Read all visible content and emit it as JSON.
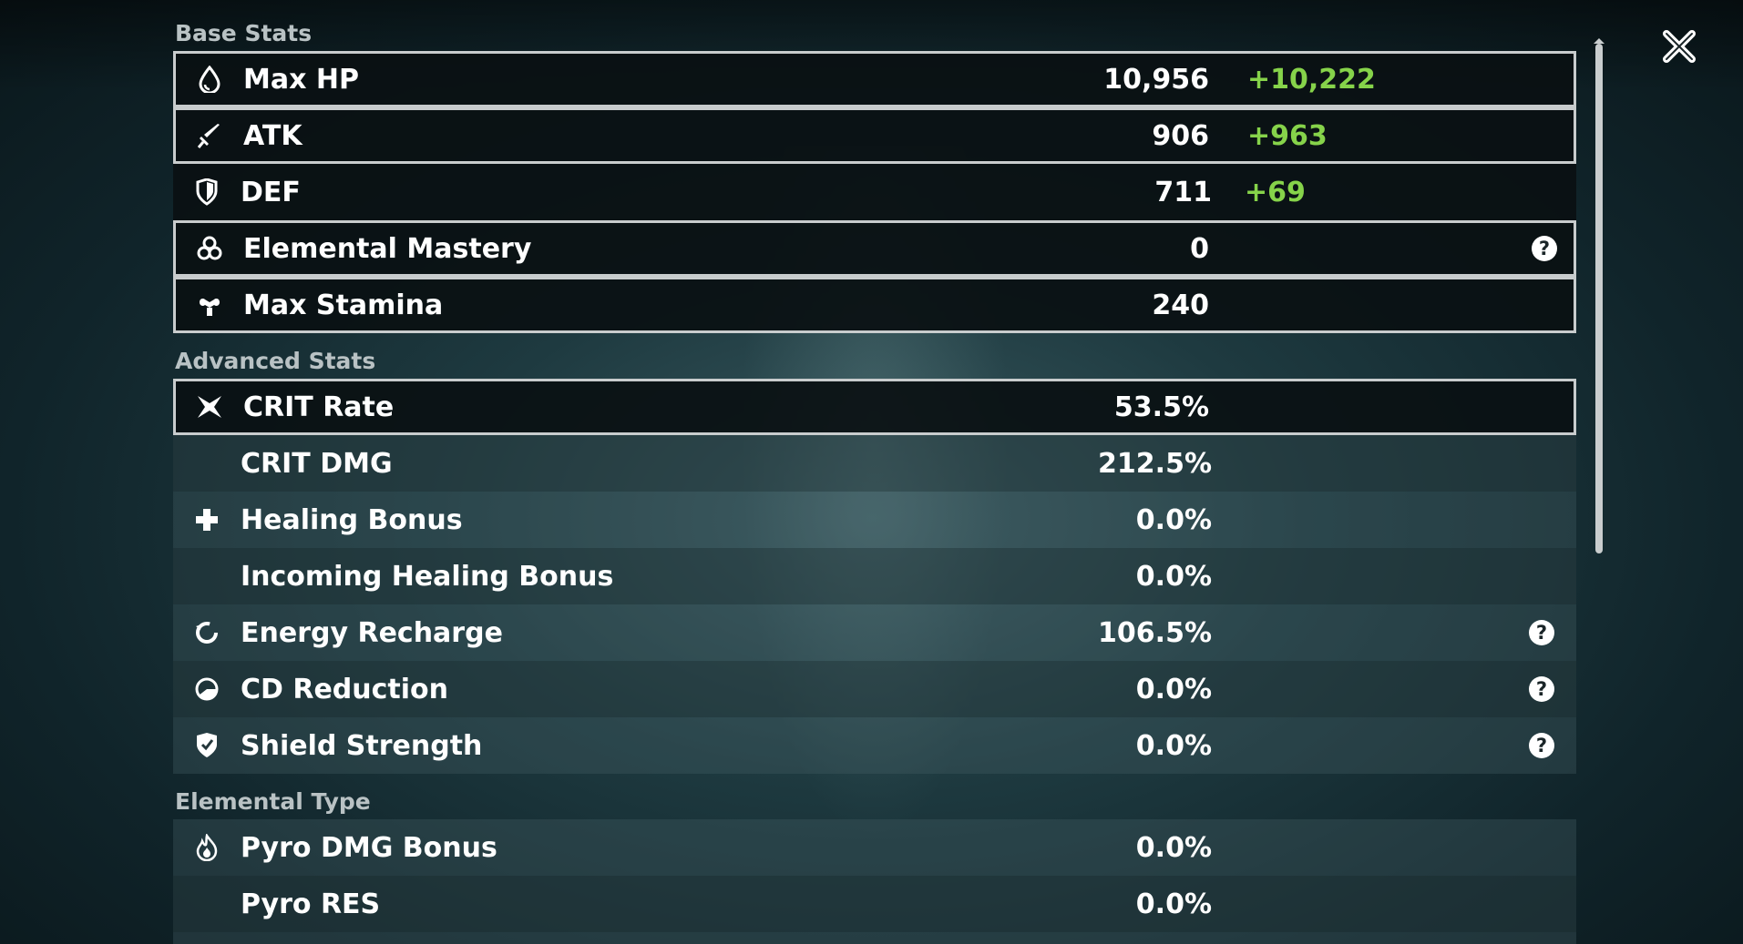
{
  "sections": {
    "base": "Base Stats",
    "advanced": "Advanced Stats",
    "elemental": "Elemental Type"
  },
  "base_stats": [
    {
      "label": "Max HP",
      "value": "10,956",
      "bonus": "+10,222",
      "icon": "hp-drop-icon"
    },
    {
      "label": "ATK",
      "value": "906",
      "bonus": "+963",
      "icon": "sword-icon"
    },
    {
      "label": "DEF",
      "value": "711",
      "bonus": "+69",
      "icon": "shield-icon"
    },
    {
      "label": "Elemental Mastery",
      "value": "0",
      "icon": "elemental-mastery-icon",
      "help": "?"
    },
    {
      "label": "Max Stamina",
      "value": "240",
      "icon": "stamina-icon"
    }
  ],
  "advanced_stats": [
    {
      "label": "CRIT Rate",
      "value": "53.5%",
      "icon": "crit-rate-icon"
    },
    {
      "label": "CRIT DMG",
      "value": "212.5%"
    },
    {
      "label": "Healing Bonus",
      "value": "0.0%",
      "icon": "healing-cross-icon"
    },
    {
      "label": "Incoming Healing Bonus",
      "value": "0.0%"
    },
    {
      "label": "Energy Recharge",
      "value": "106.5%",
      "icon": "energy-recharge-icon",
      "help": "?"
    },
    {
      "label": "CD Reduction",
      "value": "0.0%",
      "icon": "cd-reduction-icon",
      "help": "?"
    },
    {
      "label": "Shield Strength",
      "value": "0.0%",
      "icon": "shield-strength-icon",
      "help": "?"
    }
  ],
  "elemental_stats": [
    {
      "label": "Pyro DMG Bonus",
      "value": "0.0%",
      "icon": "pyro-icon"
    },
    {
      "label": "Pyro RES",
      "value": "0.0%"
    }
  ],
  "colors": {
    "bonus": "#86d34a",
    "border": "#c8cccd"
  }
}
